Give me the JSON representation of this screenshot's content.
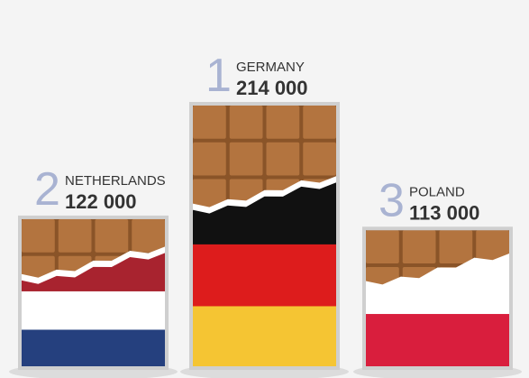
{
  "chart_data": {
    "type": "bar",
    "categories": [
      "NETHERLANDS",
      "GERMANY",
      "POLAND"
    ],
    "ranks": [
      "2",
      "1",
      "3"
    ],
    "values": [
      122000,
      214000,
      113000
    ],
    "value_labels": [
      "122 000",
      "214 000",
      "113 000"
    ],
    "colors": [
      [
        "#a8232f",
        "#ffffff",
        "#25407e"
      ],
      [
        "#111111",
        "#dd1c1c",
        "#f5c533"
      ],
      [
        "#ffffff",
        "#d91e3d"
      ]
    ],
    "chocolate_color": "#b3743f"
  }
}
